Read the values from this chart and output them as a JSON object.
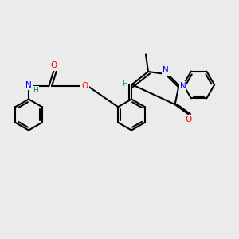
{
  "bg_color": "#ebebeb",
  "bond_color": "#000000",
  "bond_lw": 1.5,
  "atom_colors": {
    "O": "#ff0000",
    "N": "#0000ff",
    "N_teal": "#008080",
    "H": "#008080",
    "C": "#000000"
  },
  "font_size": 7.5,
  "font_size_small": 6.5
}
